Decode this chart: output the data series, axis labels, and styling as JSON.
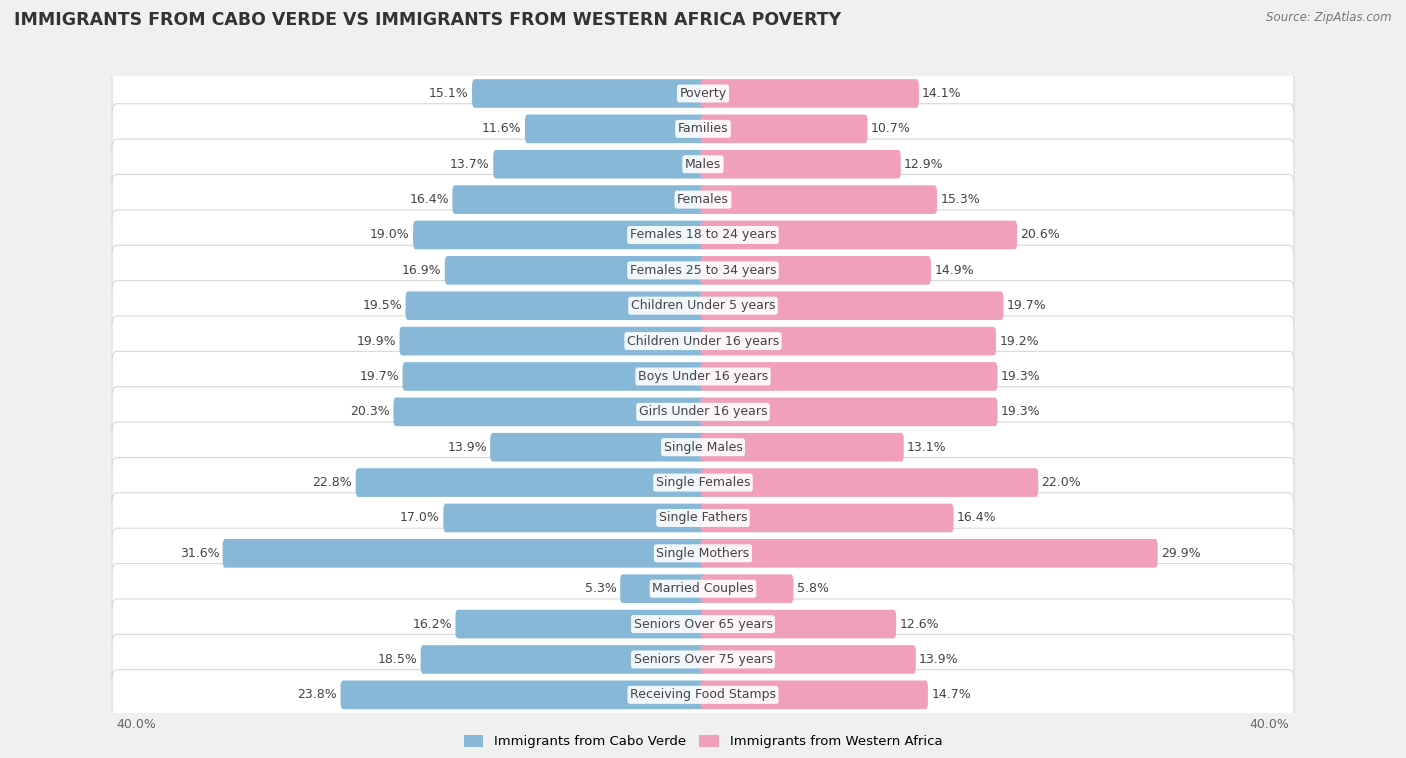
{
  "title": "IMMIGRANTS FROM CABO VERDE VS IMMIGRANTS FROM WESTERN AFRICA POVERTY",
  "source": "Source: ZipAtlas.com",
  "categories": [
    "Poverty",
    "Families",
    "Males",
    "Females",
    "Females 18 to 24 years",
    "Females 25 to 34 years",
    "Children Under 5 years",
    "Children Under 16 years",
    "Boys Under 16 years",
    "Girls Under 16 years",
    "Single Males",
    "Single Females",
    "Single Fathers",
    "Single Mothers",
    "Married Couples",
    "Seniors Over 65 years",
    "Seniors Over 75 years",
    "Receiving Food Stamps"
  ],
  "cabo_verde": [
    15.1,
    11.6,
    13.7,
    16.4,
    19.0,
    16.9,
    19.5,
    19.9,
    19.7,
    20.3,
    13.9,
    22.8,
    17.0,
    31.6,
    5.3,
    16.2,
    18.5,
    23.8
  ],
  "western_africa": [
    14.1,
    10.7,
    12.9,
    15.3,
    20.6,
    14.9,
    19.7,
    19.2,
    19.3,
    19.3,
    13.1,
    22.0,
    16.4,
    29.9,
    5.8,
    12.6,
    13.9,
    14.7
  ],
  "cabo_verde_color": "#88b8d8",
  "western_africa_color": "#f0a0b8",
  "background_color": "#f0f0f0",
  "row_bg_color": "#ffffff",
  "row_border_color": "#d8d8d8",
  "axis_max": 40.0,
  "label_fontsize": 9.0,
  "value_fontsize": 9.0,
  "title_fontsize": 12.5,
  "source_fontsize": 8.5,
  "legend_label_cabo": "Immigrants from Cabo Verde",
  "legend_label_western": "Immigrants from Western Africa",
  "text_color": "#555555",
  "value_color": "#444444"
}
